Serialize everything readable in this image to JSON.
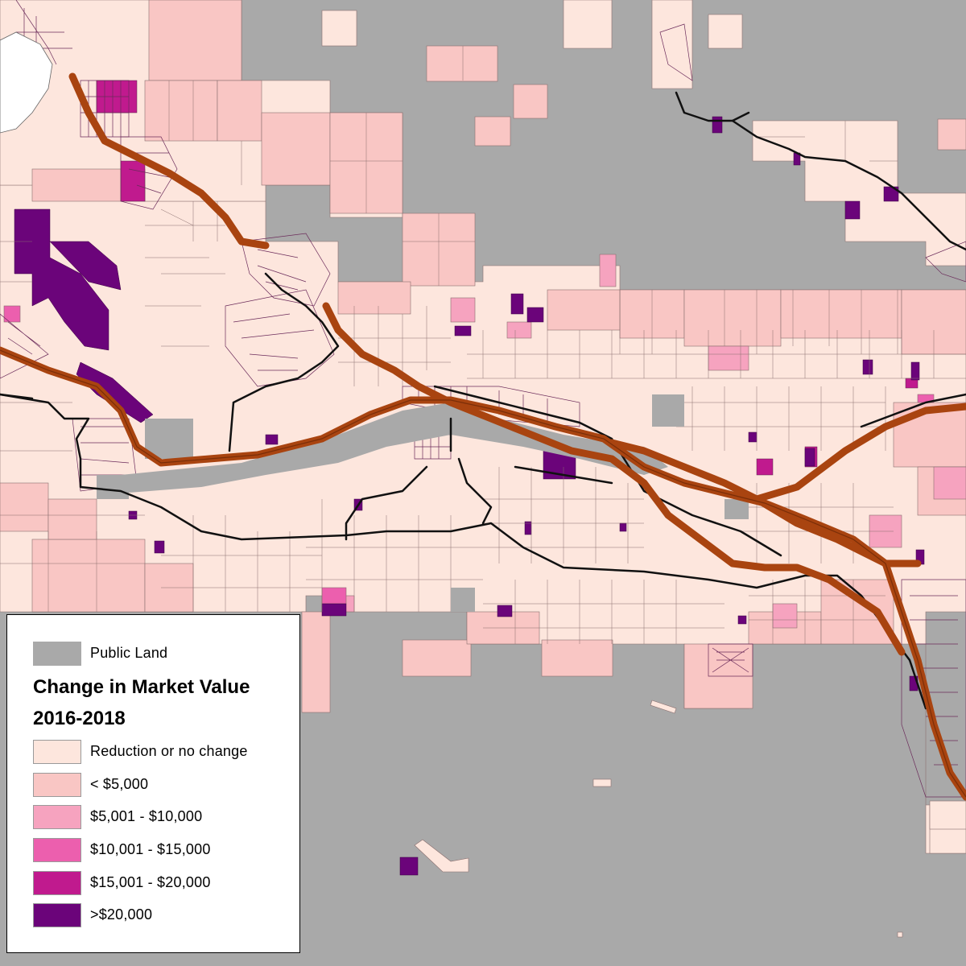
{
  "colors": {
    "public_land": "#a9a9a9",
    "class_0": "#fde6dd",
    "class_1": "#f9c6c4",
    "class_2": "#f6a3bf",
    "class_3": "#ec5fae",
    "class_4": "#c01a8e",
    "class_5": "#6b047a",
    "highway": "#a94410",
    "road": "#111111",
    "water": "#ffffff"
  },
  "legend": {
    "public_land_label": "Public Land",
    "title_line1": "Change in Market Value",
    "title_line2": "2016-2018",
    "classes": [
      {
        "label": "Reduction or no change",
        "color_key": "class_0"
      },
      {
        "label": "< $5,000",
        "color_key": "class_1"
      },
      {
        "label": "$5,001 - $10,000",
        "color_key": "class_2"
      },
      {
        "label": "$10,001 - $15,000",
        "color_key": "class_3"
      },
      {
        "label": "$15,001 - $20,000",
        "color_key": "class_4"
      },
      {
        "label": ">$20,000",
        "color_key": "class_5"
      }
    ]
  }
}
